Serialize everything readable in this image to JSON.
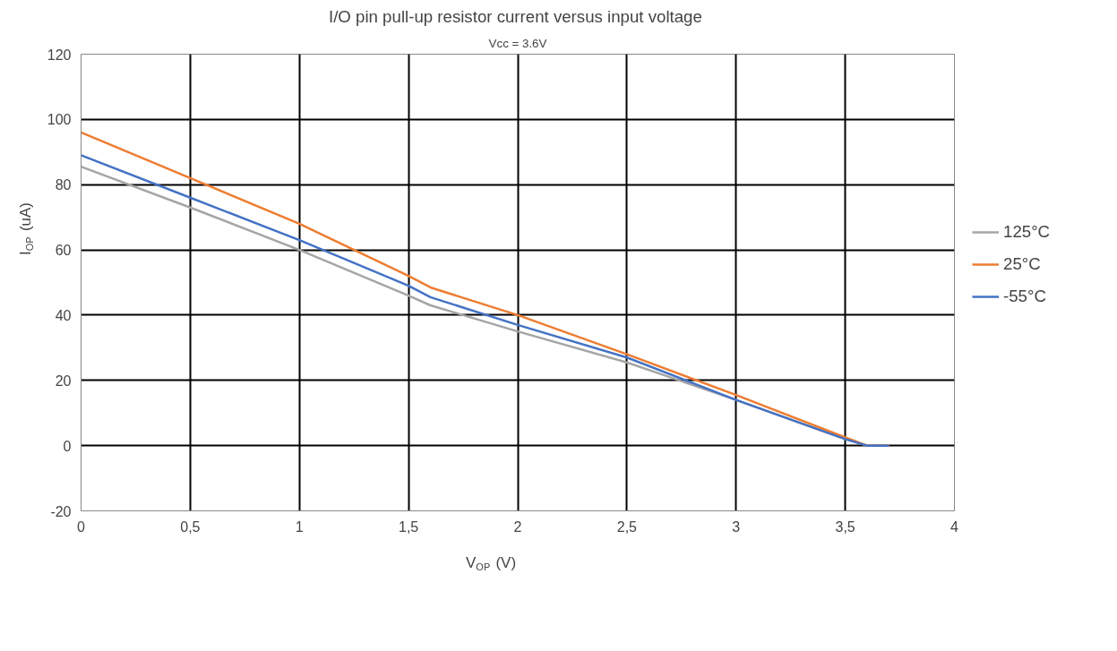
{
  "chart_data": {
    "type": "line",
    "title": "I/O pin pull-up  resistor current versus input voltage",
    "subtitle": "Vcc = 3.6V",
    "xlabel": "V$_{OP}$ (V)",
    "ylabel": "I$_{OP}$ (uA)",
    "x": [
      0,
      0.5,
      1,
      1.5,
      1.6,
      2,
      2.5,
      3,
      3.5,
      3.6,
      3.7
    ],
    "series": [
      {
        "name": "125°C",
        "color": "#a5a5a5",
        "values": [
          85.5,
          73,
          60,
          46,
          43,
          35,
          25.5,
          14,
          2,
          0,
          0
        ]
      },
      {
        "name": "25°C",
        "color": "#ed7d31",
        "values": [
          96,
          82,
          68,
          52,
          48.5,
          40,
          28,
          15.5,
          2.5,
          0,
          0
        ]
      },
      {
        "name": "-55°C",
        "color": "#4472c4",
        "values": [
          89,
          76,
          63,
          49,
          45.5,
          37,
          27,
          14,
          2,
          0,
          0
        ]
      }
    ],
    "xlim": [
      0,
      4
    ],
    "ylim": [
      -20,
      120
    ],
    "xticks": [
      0,
      {
        "value": 0.5,
        "label": "0,5"
      },
      1,
      {
        "value": 1.5,
        "label": "1,5"
      },
      2,
      {
        "value": 2.5,
        "label": "2,5"
      },
      3,
      {
        "value": 3.5,
        "label": "3,5"
      },
      4
    ],
    "yticks": [
      -20,
      0,
      20,
      40,
      60,
      80,
      100,
      120
    ],
    "grid": true,
    "legend": "right",
    "marker": "none",
    "line_style": "solid"
  }
}
